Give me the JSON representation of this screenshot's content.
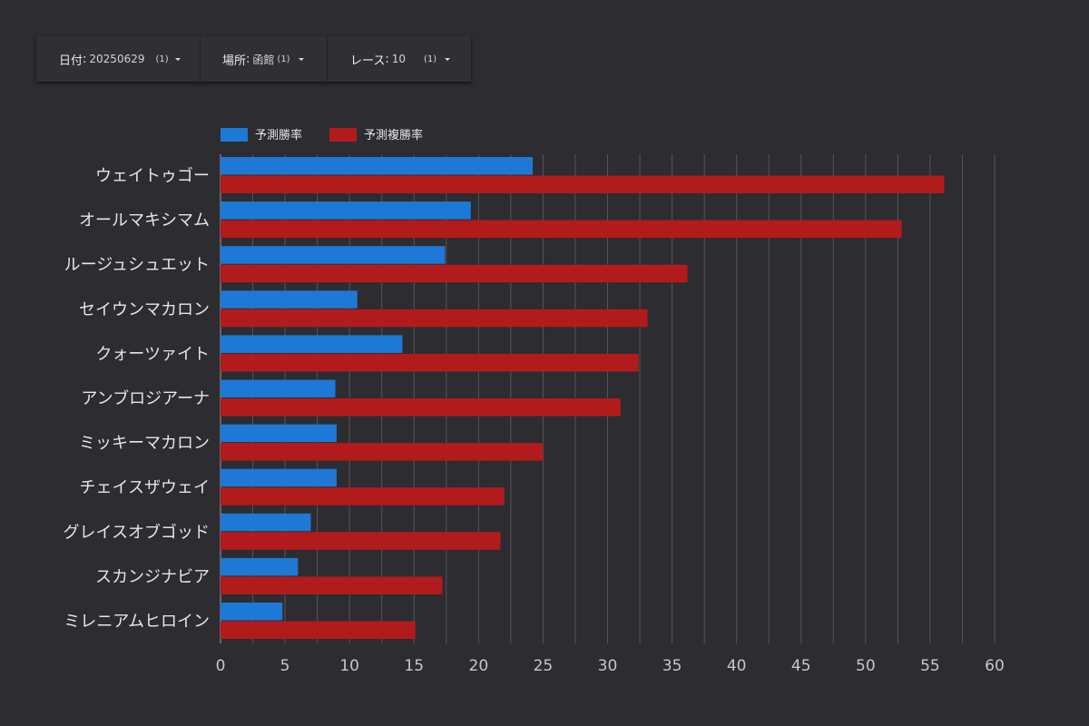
{
  "filters": [
    {
      "label": "日付",
      "value": "20250629",
      "count": "(1)"
    },
    {
      "label": "場所",
      "value": "函館",
      "count": "(1)"
    },
    {
      "label": "レース",
      "value": "10",
      "count": "(1)"
    }
  ],
  "colors": {
    "background": "#2c2c31",
    "series_win": "#1e78d6",
    "series_place": "#b21b1b",
    "grid": "#55555b",
    "text": "#e6e6e6",
    "tick_text": "#c8c8c8"
  },
  "chart_data": {
    "type": "bar",
    "orientation": "horizontal",
    "title": "",
    "xlabel": "",
    "ylabel": "",
    "xlim": [
      0,
      60
    ],
    "x_ticks": [
      0,
      5,
      10,
      15,
      20,
      25,
      30,
      35,
      40,
      45,
      50,
      55,
      60
    ],
    "grid": true,
    "legend_position": "top-left",
    "categories": [
      "ウェイトゥゴー",
      "オールマキシマム",
      "ルージュシュエット",
      "セイウンマカロン",
      "クォーツァイト",
      "アンブロジアーナ",
      "ミッキーマカロン",
      "チェイスザウェイ",
      "グレイスオブゴッド",
      "スカンジナビア",
      "ミレニアムヒロイン"
    ],
    "series": [
      {
        "name": "予測勝率",
        "color": "#1e78d6",
        "values": [
          24.2,
          19.4,
          17.4,
          10.6,
          14.1,
          8.9,
          9.0,
          9.0,
          7.0,
          6.0,
          4.8
        ]
      },
      {
        "name": "予測複勝率",
        "color": "#b21b1b",
        "values": [
          56.1,
          52.8,
          36.2,
          33.1,
          32.4,
          31.0,
          25.0,
          22.0,
          21.7,
          17.2,
          15.1
        ]
      }
    ]
  }
}
